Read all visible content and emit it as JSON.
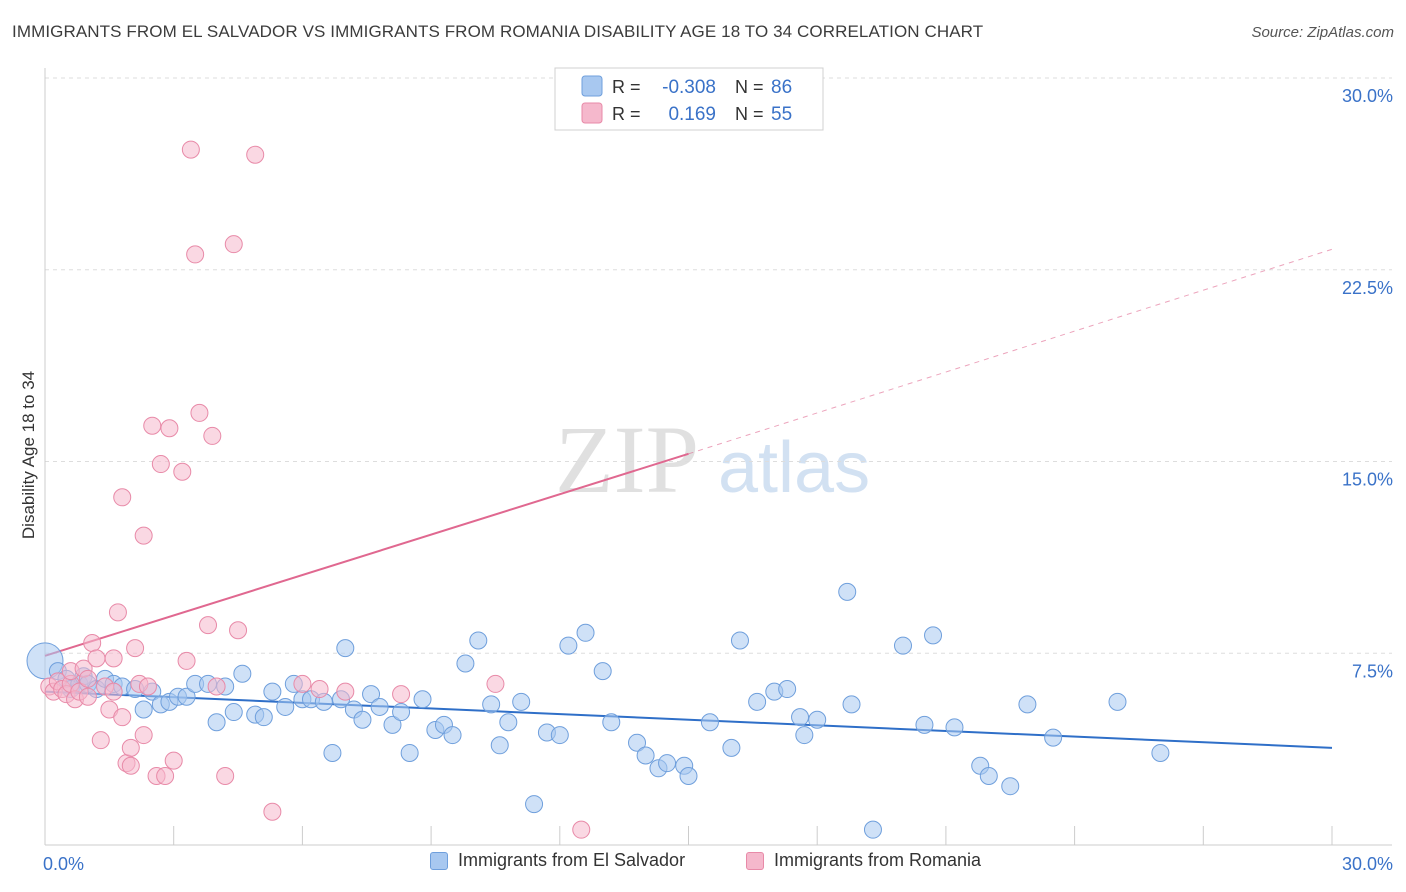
{
  "title": "IMMIGRANTS FROM EL SALVADOR VS IMMIGRANTS FROM ROMANIA DISABILITY AGE 18 TO 34 CORRELATION CHART",
  "source": "Source: ZipAtlas.com",
  "watermark": {
    "zip": "ZIP",
    "atlas": "atlas"
  },
  "legend_top": {
    "r_label": "R =",
    "n_label": "N =",
    "rows": [
      {
        "r": "-0.308",
        "n": "86"
      },
      {
        "r": "0.169",
        "n": "55"
      }
    ]
  },
  "colors": {
    "blue_fill": "#a8c8f0",
    "blue_stroke": "#6f9fdc",
    "blue_line": "#2f6fc8",
    "pink_fill": "#f5b8cc",
    "pink_stroke": "#e88aa8",
    "pink_line": "#e06890",
    "value_text": "#3a72c8",
    "grid": "#dddddd"
  },
  "chart_data": {
    "type": "scatter",
    "title": "IMMIGRANTS FROM EL SALVADOR VS IMMIGRANTS FROM ROMANIA DISABILITY AGE 18 TO 34 CORRELATION CHART",
    "xlabel": "",
    "ylabel": "Disability Age 18 to 34",
    "xlim": [
      0,
      30
    ],
    "ylim": [
      0,
      30
    ],
    "x_tick_labels": [
      "0.0%",
      "30.0%"
    ],
    "y_tick_labels": [
      "7.5%",
      "15.0%",
      "22.5%",
      "30.0%"
    ],
    "y_ticks": [
      7.5,
      15.0,
      22.5,
      30.0
    ],
    "grid": true,
    "legend_placement": "bottom",
    "series": [
      {
        "name": "Immigrants from El Salvador",
        "r": -0.308,
        "n": 86,
        "trend": {
          "x": [
            0,
            30
          ],
          "y": [
            6.0,
            3.8
          ]
        },
        "points": [
          [
            0.0,
            7.2
          ],
          [
            0.3,
            6.8
          ],
          [
            0.5,
            6.5
          ],
          [
            0.6,
            6.1
          ],
          [
            0.8,
            6.3
          ],
          [
            0.9,
            6.6
          ],
          [
            1.0,
            6.3
          ],
          [
            1.2,
            6.1
          ],
          [
            1.4,
            6.5
          ],
          [
            1.6,
            6.3
          ],
          [
            1.8,
            6.2
          ],
          [
            2.1,
            6.1
          ],
          [
            2.3,
            5.3
          ],
          [
            2.5,
            6.0
          ],
          [
            2.7,
            5.5
          ],
          [
            2.9,
            5.6
          ],
          [
            3.1,
            5.8
          ],
          [
            3.3,
            5.8
          ],
          [
            3.5,
            6.3
          ],
          [
            3.8,
            6.3
          ],
          [
            4.0,
            4.8
          ],
          [
            4.2,
            6.2
          ],
          [
            4.4,
            5.2
          ],
          [
            4.6,
            6.7
          ],
          [
            4.9,
            5.1
          ],
          [
            5.1,
            5.0
          ],
          [
            5.3,
            6.0
          ],
          [
            5.6,
            5.4
          ],
          [
            5.8,
            6.3
          ],
          [
            6.0,
            5.7
          ],
          [
            6.2,
            5.7
          ],
          [
            6.5,
            5.6
          ],
          [
            6.7,
            3.6
          ],
          [
            6.9,
            5.7
          ],
          [
            7.0,
            7.7
          ],
          [
            7.2,
            5.3
          ],
          [
            7.4,
            4.9
          ],
          [
            7.6,
            5.9
          ],
          [
            7.8,
            5.4
          ],
          [
            8.1,
            4.7
          ],
          [
            8.3,
            5.2
          ],
          [
            8.5,
            3.6
          ],
          [
            8.8,
            5.7
          ],
          [
            9.1,
            4.5
          ],
          [
            9.3,
            4.7
          ],
          [
            9.5,
            4.3
          ],
          [
            9.8,
            7.1
          ],
          [
            10.1,
            8.0
          ],
          [
            10.4,
            5.5
          ],
          [
            10.6,
            3.9
          ],
          [
            10.8,
            4.8
          ],
          [
            11.1,
            5.6
          ],
          [
            11.4,
            1.6
          ],
          [
            11.7,
            4.4
          ],
          [
            12.0,
            4.3
          ],
          [
            12.2,
            7.8
          ],
          [
            12.6,
            8.3
          ],
          [
            13.0,
            6.8
          ],
          [
            13.2,
            4.8
          ],
          [
            13.8,
            4.0
          ],
          [
            14.0,
            3.5
          ],
          [
            14.3,
            3.0
          ],
          [
            14.5,
            3.2
          ],
          [
            14.9,
            3.1
          ],
          [
            15.0,
            2.7
          ],
          [
            15.5,
            4.8
          ],
          [
            16.0,
            3.8
          ],
          [
            16.2,
            8.0
          ],
          [
            16.6,
            5.6
          ],
          [
            17.0,
            6.0
          ],
          [
            17.3,
            6.1
          ],
          [
            17.6,
            5.0
          ],
          [
            17.7,
            4.3
          ],
          [
            18.0,
            4.9
          ],
          [
            18.7,
            9.9
          ],
          [
            18.8,
            5.5
          ],
          [
            19.3,
            0.6
          ],
          [
            20.0,
            7.8
          ],
          [
            20.5,
            4.7
          ],
          [
            20.7,
            8.2
          ],
          [
            21.2,
            4.6
          ],
          [
            21.8,
            3.1
          ],
          [
            22.0,
            2.7
          ],
          [
            22.5,
            2.3
          ],
          [
            22.9,
            5.5
          ],
          [
            23.5,
            4.2
          ],
          [
            25.0,
            5.6
          ],
          [
            26.0,
            3.6
          ]
        ]
      },
      {
        "name": "Immigrants from Romania",
        "r": 0.169,
        "n": 55,
        "trend": {
          "x": [
            0,
            15
          ],
          "y": [
            7.4,
            15.3
          ],
          "dashed_extension": {
            "x": [
              15,
              30
            ],
            "y": [
              15.3,
              23.3
            ]
          }
        },
        "points": [
          [
            0.1,
            6.2
          ],
          [
            0.2,
            6.0
          ],
          [
            0.3,
            6.4
          ],
          [
            0.4,
            6.1
          ],
          [
            0.5,
            5.9
          ],
          [
            0.6,
            6.3
          ],
          [
            0.6,
            6.8
          ],
          [
            0.7,
            5.7
          ],
          [
            0.8,
            6.0
          ],
          [
            0.9,
            6.9
          ],
          [
            1.0,
            6.5
          ],
          [
            1.0,
            5.8
          ],
          [
            1.1,
            7.9
          ],
          [
            1.2,
            7.3
          ],
          [
            1.3,
            4.1
          ],
          [
            1.4,
            6.2
          ],
          [
            1.5,
            5.3
          ],
          [
            1.6,
            6.0
          ],
          [
            1.6,
            7.3
          ],
          [
            1.7,
            9.1
          ],
          [
            1.8,
            5.0
          ],
          [
            1.8,
            13.6
          ],
          [
            1.9,
            3.2
          ],
          [
            2.0,
            3.8
          ],
          [
            2.0,
            3.1
          ],
          [
            2.1,
            7.7
          ],
          [
            2.2,
            6.3
          ],
          [
            2.3,
            4.3
          ],
          [
            2.3,
            12.1
          ],
          [
            2.4,
            6.2
          ],
          [
            2.5,
            16.4
          ],
          [
            2.6,
            2.7
          ],
          [
            2.7,
            14.9
          ],
          [
            2.8,
            2.7
          ],
          [
            2.9,
            16.3
          ],
          [
            3.0,
            3.3
          ],
          [
            3.2,
            14.6
          ],
          [
            3.3,
            7.2
          ],
          [
            3.4,
            27.2
          ],
          [
            3.5,
            23.1
          ],
          [
            3.6,
            16.9
          ],
          [
            3.8,
            8.6
          ],
          [
            3.9,
            16.0
          ],
          [
            4.0,
            6.2
          ],
          [
            4.2,
            2.7
          ],
          [
            4.4,
            23.5
          ],
          [
            4.5,
            8.4
          ],
          [
            4.9,
            27.0
          ],
          [
            5.3,
            1.3
          ],
          [
            6.0,
            6.3
          ],
          [
            6.4,
            6.1
          ],
          [
            7.0,
            6.0
          ],
          [
            8.3,
            5.9
          ],
          [
            10.5,
            6.3
          ],
          [
            12.5,
            0.6
          ]
        ]
      }
    ]
  }
}
